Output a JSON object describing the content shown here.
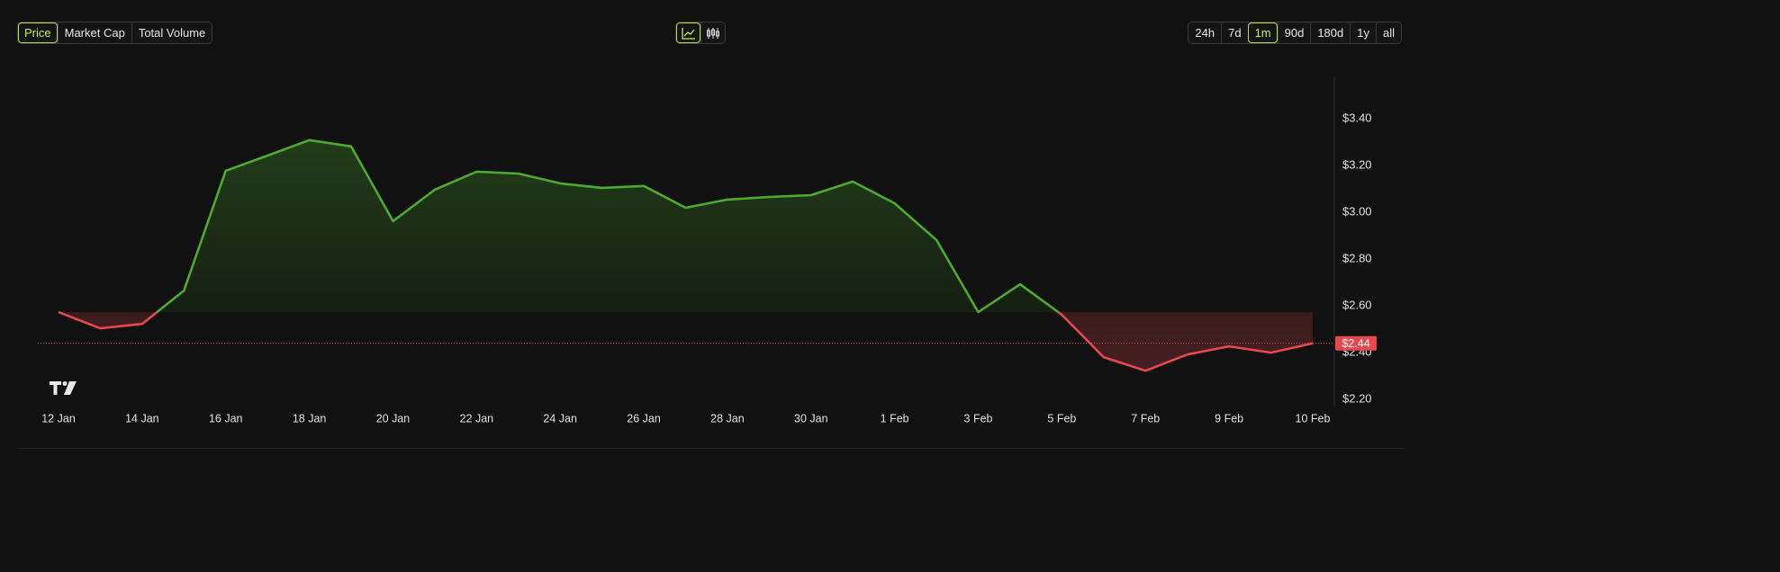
{
  "tabs": {
    "items": [
      "Price",
      "Market Cap",
      "Total Volume"
    ],
    "active": 0
  },
  "ranges": {
    "items": [
      "24h",
      "7d",
      "1m",
      "90d",
      "180d",
      "1y",
      "all"
    ],
    "active": 2
  },
  "chart_data": {
    "type": "baseline",
    "categories": [
      "12 Jan",
      null,
      "14 Jan",
      null,
      "16 Jan",
      null,
      "18 Jan",
      null,
      "20 Jan",
      null,
      "22 Jan",
      null,
      "24 Jan",
      null,
      "26 Jan",
      null,
      "28 Jan",
      null,
      "30 Jan",
      null,
      "1 Feb",
      null,
      "3 Feb",
      null,
      "5 Feb",
      null,
      "7 Feb",
      null,
      "9 Feb",
      null,
      "10 Feb"
    ],
    "values": [
      2.573,
      2.504,
      2.523,
      2.665,
      3.177,
      3.242,
      3.308,
      3.281,
      2.962,
      3.096,
      3.173,
      3.165,
      3.123,
      3.104,
      3.112,
      3.019,
      3.054,
      3.065,
      3.073,
      3.131,
      3.038,
      2.881,
      2.573,
      2.692,
      2.562,
      2.381,
      2.323,
      2.392,
      2.427,
      2.4,
      2.44
    ],
    "last_value_label": "$2.44",
    "colors": {
      "up": "#4cab2c",
      "down": "#e5484d"
    },
    "ylim": [
      2.17,
      3.58
    ],
    "yticks": [
      {
        "value": 2.2,
        "label": "$2.20"
      },
      {
        "value": 2.4,
        "label": "$2.40"
      },
      {
        "value": 2.6,
        "label": "$2.60"
      },
      {
        "value": 2.8,
        "label": "$2.80"
      },
      {
        "value": 3.0,
        "label": "$3.00"
      },
      {
        "value": 3.2,
        "label": "$3.20"
      },
      {
        "value": 3.4,
        "label": "$3.40"
      }
    ],
    "grid": false
  }
}
